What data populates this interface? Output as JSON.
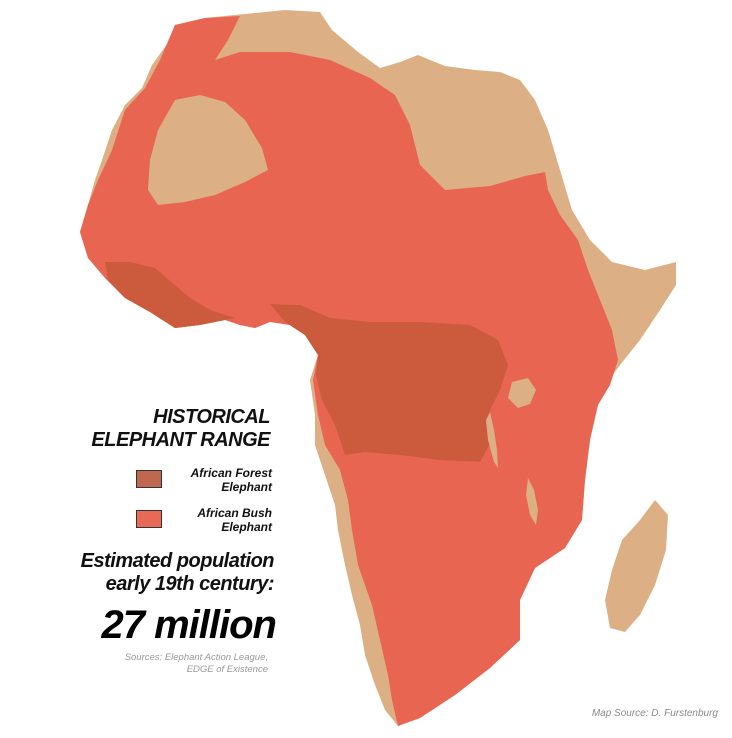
{
  "legend": {
    "title_line1": "HISTORICAL",
    "title_line2": "ELEPHANT RANGE",
    "items": [
      {
        "label_line1": "African Forest",
        "label_line2": "Elephant",
        "color": "#c0674e"
      },
      {
        "label_line1": "African Bush",
        "label_line2": "Elephant",
        "color": "#e86a56"
      }
    ]
  },
  "stats": {
    "line1": "Estimated population",
    "line2": "early 19th century:",
    "value": "27 million"
  },
  "sources": {
    "line1": "Sources: Elephant Action League,",
    "line2": "EDGE of Existence"
  },
  "map_source": "Map Source: D. Furstenburg",
  "colors": {
    "land_no_range": "#dcb084",
    "bush_range": "#e86552",
    "forest_range": "#cc5a3c",
    "background": "#ffffff"
  }
}
